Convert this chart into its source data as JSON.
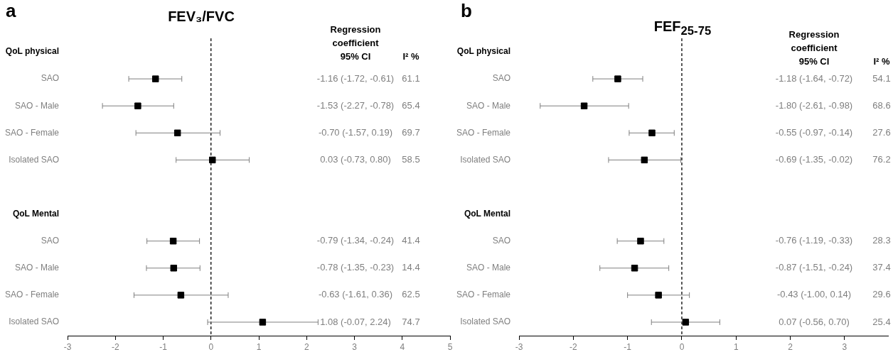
{
  "chart_data": [
    {
      "type": "scatter",
      "orientation": "horizontal",
      "title": "FEV₃/FVC",
      "marker": "square",
      "color": "#000000",
      "categories": [
        "QoL physical",
        "SAO",
        "SAO - Male",
        "SAO - Female",
        "Isolated SAO",
        null,
        "QoL Mental",
        "SAO",
        "SAO - Male",
        "SAO - Female",
        "Isolated SAO"
      ],
      "values": [
        null,
        -1.16,
        -1.53,
        -0.7,
        0.03,
        null,
        null,
        -0.79,
        -0.78,
        -0.63,
        1.08
      ],
      "errors": [
        null,
        [
          -1.72,
          -0.61
        ],
        [
          -2.27,
          -0.78
        ],
        [
          -1.57,
          0.19
        ],
        [
          -0.73,
          0.8
        ],
        null,
        null,
        [
          -1.34,
          -0.24
        ],
        [
          -1.35,
          -0.23
        ],
        [
          -1.61,
          0.36
        ],
        [
          -0.07,
          2.24
        ]
      ],
      "xlim": [
        -3,
        5
      ],
      "xticks": [
        -3,
        -2,
        -1,
        0,
        1,
        2,
        3,
        4,
        5
      ],
      "ref_lines": [
        {
          "axis": "x",
          "value": 0,
          "color": "#000000",
          "line_style": "dashed"
        }
      ],
      "annotations": [
        "a",
        "Regression\ncoefficient\n95% CI",
        "I² %",
        "-1.16 (-1.72, -0.61)",
        "61.1",
        "-1.53 (-2.27, -0.78)",
        "65.4",
        "-0.70 (-1.57, 0.19)",
        "69.7",
        "0.03 (-0.73, 0.80)",
        "58.5",
        "-0.79 (-1.34, -0.24)",
        "41.4",
        "-0.78 (-1.35, -0.23)",
        "14.4",
        "-0.63 (-1.61, 0.36)",
        "62.5",
        "1.08 (-0.07, 2.24)",
        "74.7"
      ]
    },
    {
      "type": "scatter",
      "orientation": "horizontal",
      "title": "FEF$_{25-75}$",
      "marker": "square",
      "color": "#000000",
      "categories": [
        "QoL physical",
        "SAO",
        "SAO - Male",
        "SAO - Female",
        "Isolated SAO",
        null,
        "QoL Mental",
        "SAO",
        "SAO - Male",
        "SAO - Female",
        "Isolated SAO"
      ],
      "values": [
        null,
        -1.18,
        -1.8,
        -0.55,
        -0.69,
        null,
        null,
        -0.76,
        -0.87,
        -0.43,
        0.07
      ],
      "errors": [
        null,
        [
          -1.64,
          -0.72
        ],
        [
          -2.61,
          -0.98
        ],
        [
          -0.97,
          -0.14
        ],
        [
          -1.35,
          -0.02
        ],
        null,
        null,
        [
          -1.19,
          -0.33
        ],
        [
          -1.51,
          -0.24
        ],
        [
          -1.0,
          0.14
        ],
        [
          -0.56,
          0.7
        ]
      ],
      "xlim": [
        -3,
        3.8
      ],
      "xticks": [
        -3,
        -2,
        -1,
        0,
        1,
        2,
        3
      ],
      "ref_lines": [
        {
          "axis": "x",
          "value": 0,
          "color": "#000000",
          "line_style": "dashed"
        }
      ],
      "annotations": [
        "b",
        "Regression\ncoefficient\n95% CI",
        "I² %",
        "-1.18 (-1.64, -0.72)",
        "54.1",
        "-1.80 (-2.61, -0.98)",
        "68.6",
        "-0.55 (-0.97, -0.14)",
        "27.6",
        "-0.69 (-1.35, -0.02)",
        "76.2",
        "-0.76 (-1.19, -0.33)",
        "28.3",
        "-0.87 (-1.51, -0.24)",
        "37.4",
        "-0.43 (-1.00, 0.14)",
        "29.6",
        "0.07 (-0.56, 0.70)",
        "25.4"
      ]
    }
  ]
}
